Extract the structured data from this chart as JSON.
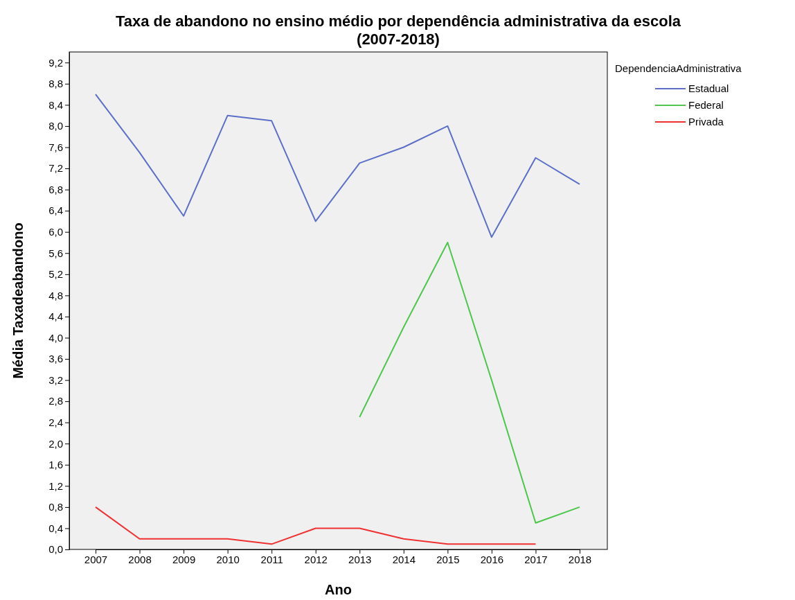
{
  "chart_data": {
    "type": "line",
    "title": "Taxa de abandono no ensino médio por dependência administrativa da escola",
    "subtitle": "(2007-2018)",
    "xlabel": "Ano",
    "ylabel": "Média Taxadeabandono",
    "legend_title": "DependenciaAdministrativa",
    "legend": "top right",
    "grid": false,
    "marker": "none",
    "line_style": "solid",
    "categories": [
      "2007",
      "2008",
      "2009",
      "2010",
      "2011",
      "2012",
      "2013",
      "2014",
      "2015",
      "2016",
      "2017",
      "2018"
    ],
    "ylim": [
      0,
      9.4
    ],
    "yticks": [
      {
        "value": 0,
        "label": "0,0"
      },
      {
        "value": 0.4,
        "label": "0,4"
      },
      {
        "value": 0.8,
        "label": "0,8"
      },
      {
        "value": 1.2,
        "label": "1,2"
      },
      {
        "value": 1.6,
        "label": "1,6"
      },
      {
        "value": 2,
        "label": "2,0"
      },
      {
        "value": 2.4,
        "label": "2,4"
      },
      {
        "value": 2.8,
        "label": "2,8"
      },
      {
        "value": 3.2,
        "label": "3,2"
      },
      {
        "value": 3.6,
        "label": "3,6"
      },
      {
        "value": 4,
        "label": "4,0"
      },
      {
        "value": 4.4,
        "label": "4,4"
      },
      {
        "value": 4.8,
        "label": "4,8"
      },
      {
        "value": 5.2,
        "label": "5,2"
      },
      {
        "value": 5.6,
        "label": "5,6"
      },
      {
        "value": 6,
        "label": "6,0"
      },
      {
        "value": 6.4,
        "label": "6,4"
      },
      {
        "value": 6.8,
        "label": "6,8"
      },
      {
        "value": 7.2,
        "label": "7,2"
      },
      {
        "value": 7.6,
        "label": "7,6"
      },
      {
        "value": 8,
        "label": "8,0"
      },
      {
        "value": 8.4,
        "label": "8,4"
      },
      {
        "value": 8.8,
        "label": "8,8"
      },
      {
        "value": 9.2,
        "label": "9,2"
      }
    ],
    "series": [
      {
        "name": "Estadual",
        "color": "#5b6fc8",
        "values": [
          8.6,
          7.5,
          6.3,
          8.2,
          8.1,
          6.2,
          7.3,
          7.6,
          8.0,
          5.9,
          7.4,
          6.9
        ]
      },
      {
        "name": "Federal",
        "color": "#4cc74c",
        "values": [
          null,
          null,
          null,
          null,
          null,
          null,
          2.5,
          4.2,
          5.8,
          3.2,
          0.5,
          0.8
        ]
      },
      {
        "name": "Privada",
        "color": "#f03030",
        "values": [
          0.8,
          0.2,
          0.2,
          0.2,
          0.1,
          0.4,
          0.4,
          0.2,
          0.1,
          0.1,
          0.1,
          null
        ]
      }
    ]
  }
}
